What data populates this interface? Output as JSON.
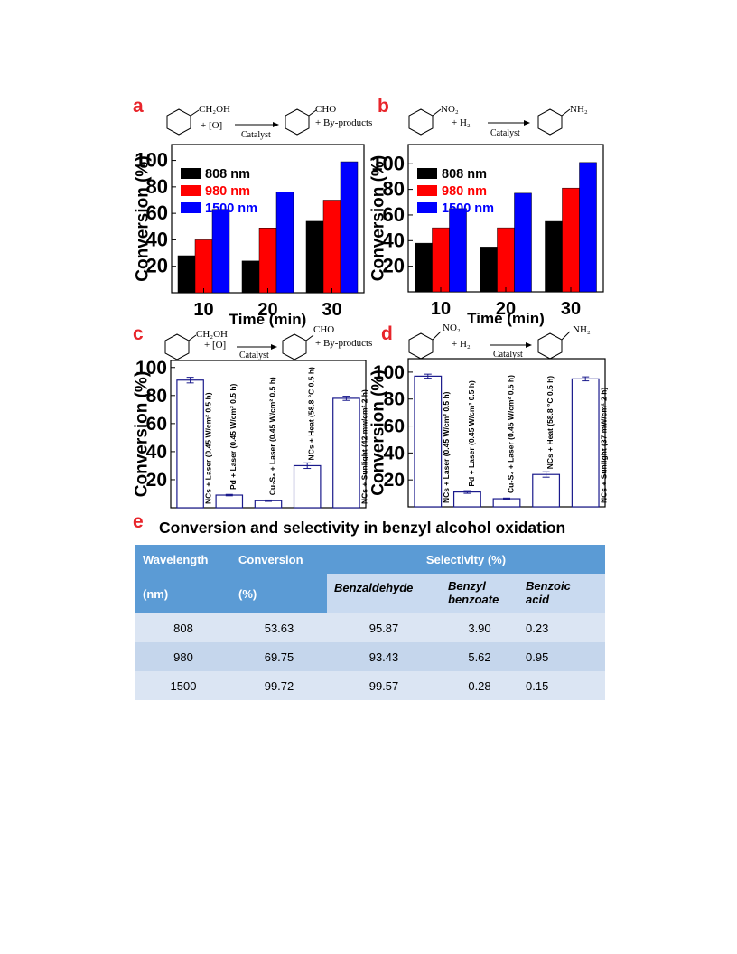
{
  "panels": {
    "a": "a",
    "b": "b",
    "c": "c",
    "d": "d",
    "e": "e"
  },
  "schemes": {
    "a": {
      "reactant": "CH₂OH",
      "reagent": "+  [O]",
      "catalyst": "Catalyst",
      "product": "CHO",
      "byproducts": "+  By-products"
    },
    "b": {
      "reactant": "NO₂",
      "reagent": "+  H₂",
      "catalyst": "Catalyst",
      "product": "NH₂"
    },
    "c": {
      "reactant": "CH₂OH",
      "reagent": "+  [O]",
      "catalyst": "Catalyst",
      "product": "CHO",
      "byproducts": "+  By-products"
    },
    "d": {
      "reactant": "NO₂",
      "reagent": "+  H₂",
      "catalyst": "Catalyst",
      "product": "NH₂"
    }
  },
  "chart_data": [
    {
      "id": "a",
      "type": "bar",
      "xlabel": "Time (min)",
      "ylabel": "Conversion (%)",
      "categories": [
        "10",
        "20",
        "30"
      ],
      "yticks": [
        20,
        40,
        60,
        80,
        100
      ],
      "ylim": [
        0,
        112
      ],
      "legend_position": "top-left",
      "series": [
        {
          "name": "808 nm",
          "color": "#000000",
          "values": [
            28,
            24,
            54
          ]
        },
        {
          "name": "980 nm",
          "color": "#ff0000",
          "values": [
            40,
            49,
            70
          ]
        },
        {
          "name": "1500 nm",
          "color": "#0000ff",
          "values": [
            63,
            76,
            99
          ]
        }
      ]
    },
    {
      "id": "b",
      "type": "bar",
      "xlabel": "Time (min)",
      "ylabel": "Conversion (%)",
      "categories": [
        "10",
        "20",
        "30"
      ],
      "yticks": [
        20,
        40,
        60,
        80,
        100
      ],
      "ylim": [
        0,
        115
      ],
      "legend_position": "top-left",
      "series": [
        {
          "name": "808 nm",
          "color": "#000000",
          "values": [
            38,
            35,
            55
          ]
        },
        {
          "name": "980 nm",
          "color": "#ff0000",
          "values": [
            50,
            50,
            81
          ]
        },
        {
          "name": "1500 nm",
          "color": "#0000ff",
          "values": [
            65,
            77,
            101
          ]
        }
      ]
    },
    {
      "id": "c",
      "type": "bar",
      "ylabel": "Conversion (%)",
      "yticks": [
        20,
        40,
        60,
        80,
        100
      ],
      "ylim": [
        0,
        105
      ],
      "categories": [
        "NCs + Laser (0.45 W/cm² 0.5 h)",
        "Pd + Laser (0.45 W/cm² 0.5 h)",
        "Cu₇S₄ + Laser (0.45 W/cm² 0.5 h)",
        "NCs + Heat (58.8 °C 0.5 h)",
        "NCs + Sunlight (42 mw/cm² 2 h)"
      ],
      "values": [
        91,
        9,
        5,
        30,
        78
      ],
      "errors": [
        2,
        0.5,
        0.5,
        2,
        1.5
      ]
    },
    {
      "id": "d",
      "type": "bar",
      "ylabel": "Conversion (%)",
      "yticks": [
        20,
        40,
        60,
        80,
        100
      ],
      "ylim": [
        0,
        110
      ],
      "categories": [
        "NCs + Laser (0.45 W/cm² 0.5 h)",
        "Pd + Laser (0.45 W/cm² 0.5 h)",
        "Cu₇S₄ + Laser (0.45 W/cm² 0.5 h)",
        "NCs + Heat (58.8 °C 0.5 h)",
        "NCs + Sunlight  (37 mW/cm² 2 h)"
      ],
      "values": [
        97,
        11,
        6,
        24,
        95
      ],
      "errors": [
        1.5,
        1,
        0.5,
        2,
        1.5
      ]
    },
    {
      "id": "e",
      "type": "table",
      "title": "Conversion and selectivity in benzyl alcohol oxidation",
      "headers": {
        "wavelength": "Wavelength",
        "wavelength_unit": "(nm)",
        "conversion": "Conversion",
        "conversion_unit": "(%)",
        "selectivity": "Selectivity  (%)",
        "benzaldehyde": "Benzaldehyde",
        "benzyl_benzoate_1": "Benzyl",
        "benzyl_benzoate_2": "benzoate",
        "benzoic_acid_1": "Benzoic",
        "benzoic_acid_2": "acid"
      },
      "rows": [
        [
          "808",
          "53.63",
          "95.87",
          "3.90",
          "0.23"
        ],
        [
          "980",
          "69.75",
          "93.43",
          "5.62",
          "0.95"
        ],
        [
          "1500",
          "99.72",
          "99.57",
          "0.28",
          "0.15"
        ]
      ]
    }
  ]
}
